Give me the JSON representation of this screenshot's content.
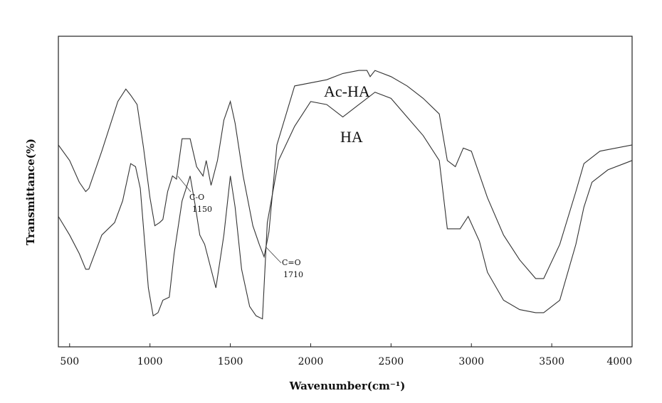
{
  "chart_data": {
    "type": "line",
    "title": "",
    "xlabel": "Wavenumber(cm⁻¹)",
    "ylabel": "Transmittance(%)",
    "xlim": [
      430,
      4000
    ],
    "ylim": [
      0,
      100
    ],
    "xticks": [
      500,
      1000,
      1500,
      2000,
      2500,
      3000,
      3500,
      4000
    ],
    "grid": false,
    "legend": "none",
    "series": [
      {
        "name": "Ac-HA",
        "x": [
          430,
          500,
          560,
          600,
          620,
          700,
          800,
          850,
          880,
          920,
          960,
          1000,
          1030,
          1060,
          1080,
          1110,
          1140,
          1165,
          1200,
          1250,
          1290,
          1330,
          1350,
          1380,
          1420,
          1460,
          1500,
          1530,
          1580,
          1640,
          1680,
          1710,
          1740,
          1790,
          1900,
          2100,
          2200,
          2300,
          2350,
          2370,
          2400,
          2500,
          2600,
          2700,
          2800,
          2850,
          2900,
          2950,
          3000,
          3100,
          3200,
          3300,
          3400,
          3450,
          3550,
          3650,
          3700,
          3800,
          3900,
          4000
        ],
        "y": [
          65,
          60,
          53,
          50,
          51,
          63,
          79,
          83,
          81,
          78,
          64,
          48,
          39,
          40,
          41,
          50,
          55,
          54,
          67,
          67,
          58,
          55,
          60,
          52,
          60,
          73,
          79,
          72,
          55,
          39,
          33,
          29,
          37,
          65,
          84,
          86,
          88,
          89,
          89,
          87,
          89,
          87,
          84,
          80,
          75,
          60,
          58,
          64,
          63,
          48,
          36,
          28,
          22,
          22,
          33,
          50,
          59,
          63,
          64,
          65
        ]
      },
      {
        "name": "HA",
        "x": [
          430,
          500,
          560,
          600,
          620,
          700,
          780,
          830,
          880,
          910,
          940,
          990,
          1020,
          1050,
          1080,
          1120,
          1150,
          1200,
          1250,
          1280,
          1310,
          1340,
          1380,
          1410,
          1460,
          1500,
          1530,
          1570,
          1620,
          1660,
          1700,
          1730,
          1800,
          1900,
          2000,
          2100,
          2200,
          2300,
          2400,
          2500,
          2600,
          2700,
          2800,
          2850,
          2880,
          2930,
          2980,
          3050,
          3100,
          3200,
          3300,
          3400,
          3450,
          3550,
          3650,
          3700,
          3750,
          3850,
          3950,
          4000
        ],
        "y": [
          42,
          36,
          30,
          25,
          25,
          36,
          40,
          47,
          59,
          58,
          51,
          19,
          10,
          11,
          15,
          16,
          30,
          47,
          55,
          46,
          36,
          33,
          25,
          19,
          36,
          55,
          45,
          25,
          13,
          10,
          9,
          40,
          60,
          71,
          79,
          78,
          74,
          78,
          82,
          80,
          74,
          68,
          60,
          38,
          38,
          38,
          42,
          34,
          24,
          15,
          12,
          11,
          11,
          15,
          33,
          45,
          53,
          57,
          59,
          60
        ]
      }
    ],
    "annotations": [
      {
        "line1": "C-O",
        "line2": "1150",
        "at_x": 1150,
        "at_y": 55
      },
      {
        "line1": "C=O",
        "line2": "1710",
        "at_x": 1710,
        "at_y": 30
      }
    ]
  }
}
